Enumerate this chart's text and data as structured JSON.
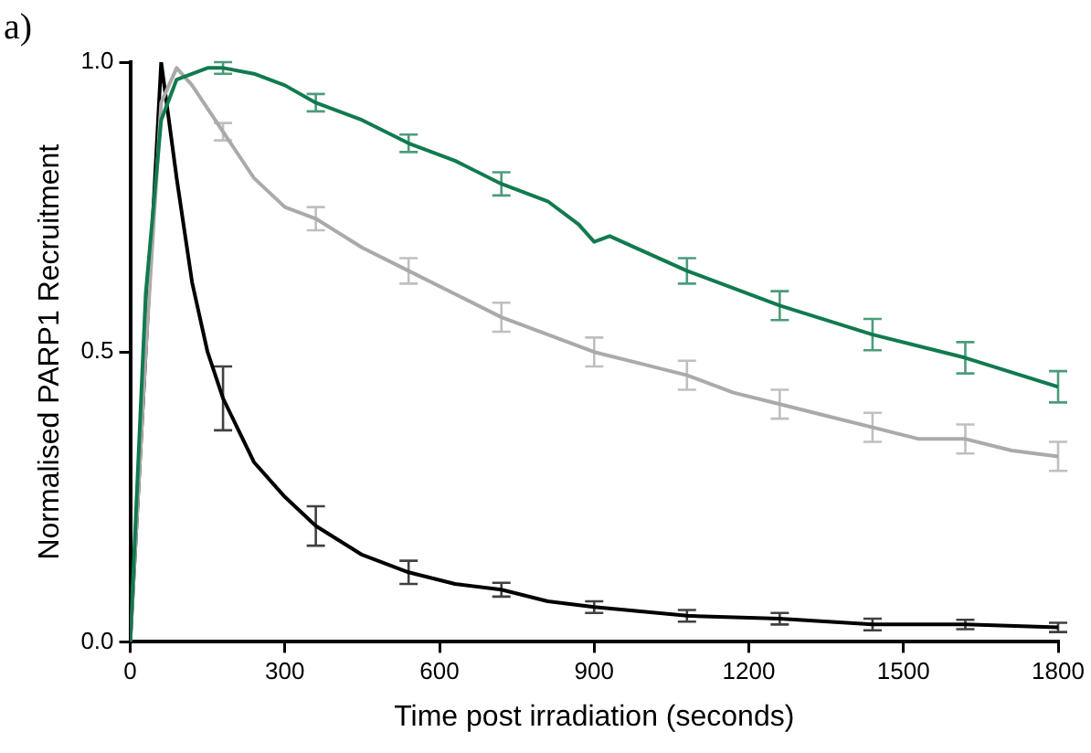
{
  "chart_data": {
    "type": "line",
    "xlabel": "Time post irradiation (seconds)",
    "ylabel": "Normalised PARP1 Recruitment",
    "annotations": [
      "a)"
    ],
    "xlim": [
      0,
      1800
    ],
    "xticks": [
      0,
      300,
      600,
      900,
      1200,
      1500,
      1800
    ],
    "ylim": [
      0,
      1
    ],
    "yticks": [
      {
        "value": 0,
        "label": "0.0"
      },
      {
        "value": 0.5,
        "label": "0.5"
      },
      {
        "value": 1,
        "label": "1.0"
      }
    ],
    "grid": false,
    "legend": false,
    "marker": "none",
    "line_style": "solid",
    "series": [
      {
        "color": "#117a4f",
        "x": [
          0,
          30,
          60,
          90,
          150,
          180,
          240,
          300,
          360,
          450,
          540,
          630,
          720,
          810,
          870,
          900,
          930,
          1080,
          1260,
          1440,
          1620,
          1800
        ],
        "values": [
          0,
          0.6,
          0.9,
          0.97,
          0.99,
          0.99,
          0.98,
          0.96,
          0.93,
          0.9,
          0.86,
          0.83,
          0.79,
          0.76,
          0.72,
          0.69,
          0.7,
          0.64,
          0.58,
          0.53,
          0.49,
          0.44
        ],
        "errors": [
          null,
          null,
          null,
          null,
          null,
          0.01,
          null,
          null,
          0.015,
          null,
          0.015,
          null,
          0.02,
          null,
          null,
          null,
          null,
          0.022,
          0.025,
          0.027,
          0.027,
          0.027
        ]
      },
      {
        "color": "#aaaaaa",
        "x": [
          0,
          30,
          60,
          90,
          120,
          180,
          240,
          300,
          360,
          450,
          540,
          630,
          720,
          810,
          900,
          990,
          1080,
          1170,
          1260,
          1350,
          1440,
          1530,
          1620,
          1710,
          1800
        ],
        "values": [
          0,
          0.5,
          0.93,
          0.99,
          0.96,
          0.88,
          0.8,
          0.75,
          0.73,
          0.68,
          0.64,
          0.6,
          0.56,
          0.53,
          0.5,
          0.48,
          0.46,
          0.43,
          0.41,
          0.39,
          0.37,
          0.35,
          0.35,
          0.33,
          0.32
        ],
        "errors": [
          null,
          null,
          null,
          null,
          null,
          0.015,
          null,
          null,
          0.02,
          null,
          0.022,
          null,
          0.025,
          null,
          0.025,
          null,
          0.025,
          null,
          0.025,
          null,
          0.025,
          null,
          0.025,
          null,
          0.025
        ]
      },
      {
        "color": "#000000",
        "x": [
          0,
          60,
          90,
          120,
          150,
          180,
          240,
          300,
          360,
          450,
          540,
          630,
          720,
          810,
          900,
          1080,
          1260,
          1440,
          1620,
          1800
        ],
        "values": [
          0,
          1,
          0.8,
          0.62,
          0.5,
          0.42,
          0.31,
          0.25,
          0.2,
          0.15,
          0.12,
          0.1,
          0.09,
          0.07,
          0.06,
          0.045,
          0.04,
          0.03,
          0.03,
          0.025
        ],
        "errors": [
          null,
          null,
          null,
          null,
          null,
          0.055,
          null,
          null,
          0.034,
          null,
          0.02,
          null,
          0.012,
          null,
          0.01,
          0.01,
          0.01,
          0.01,
          0.008,
          0.008
        ]
      }
    ]
  }
}
